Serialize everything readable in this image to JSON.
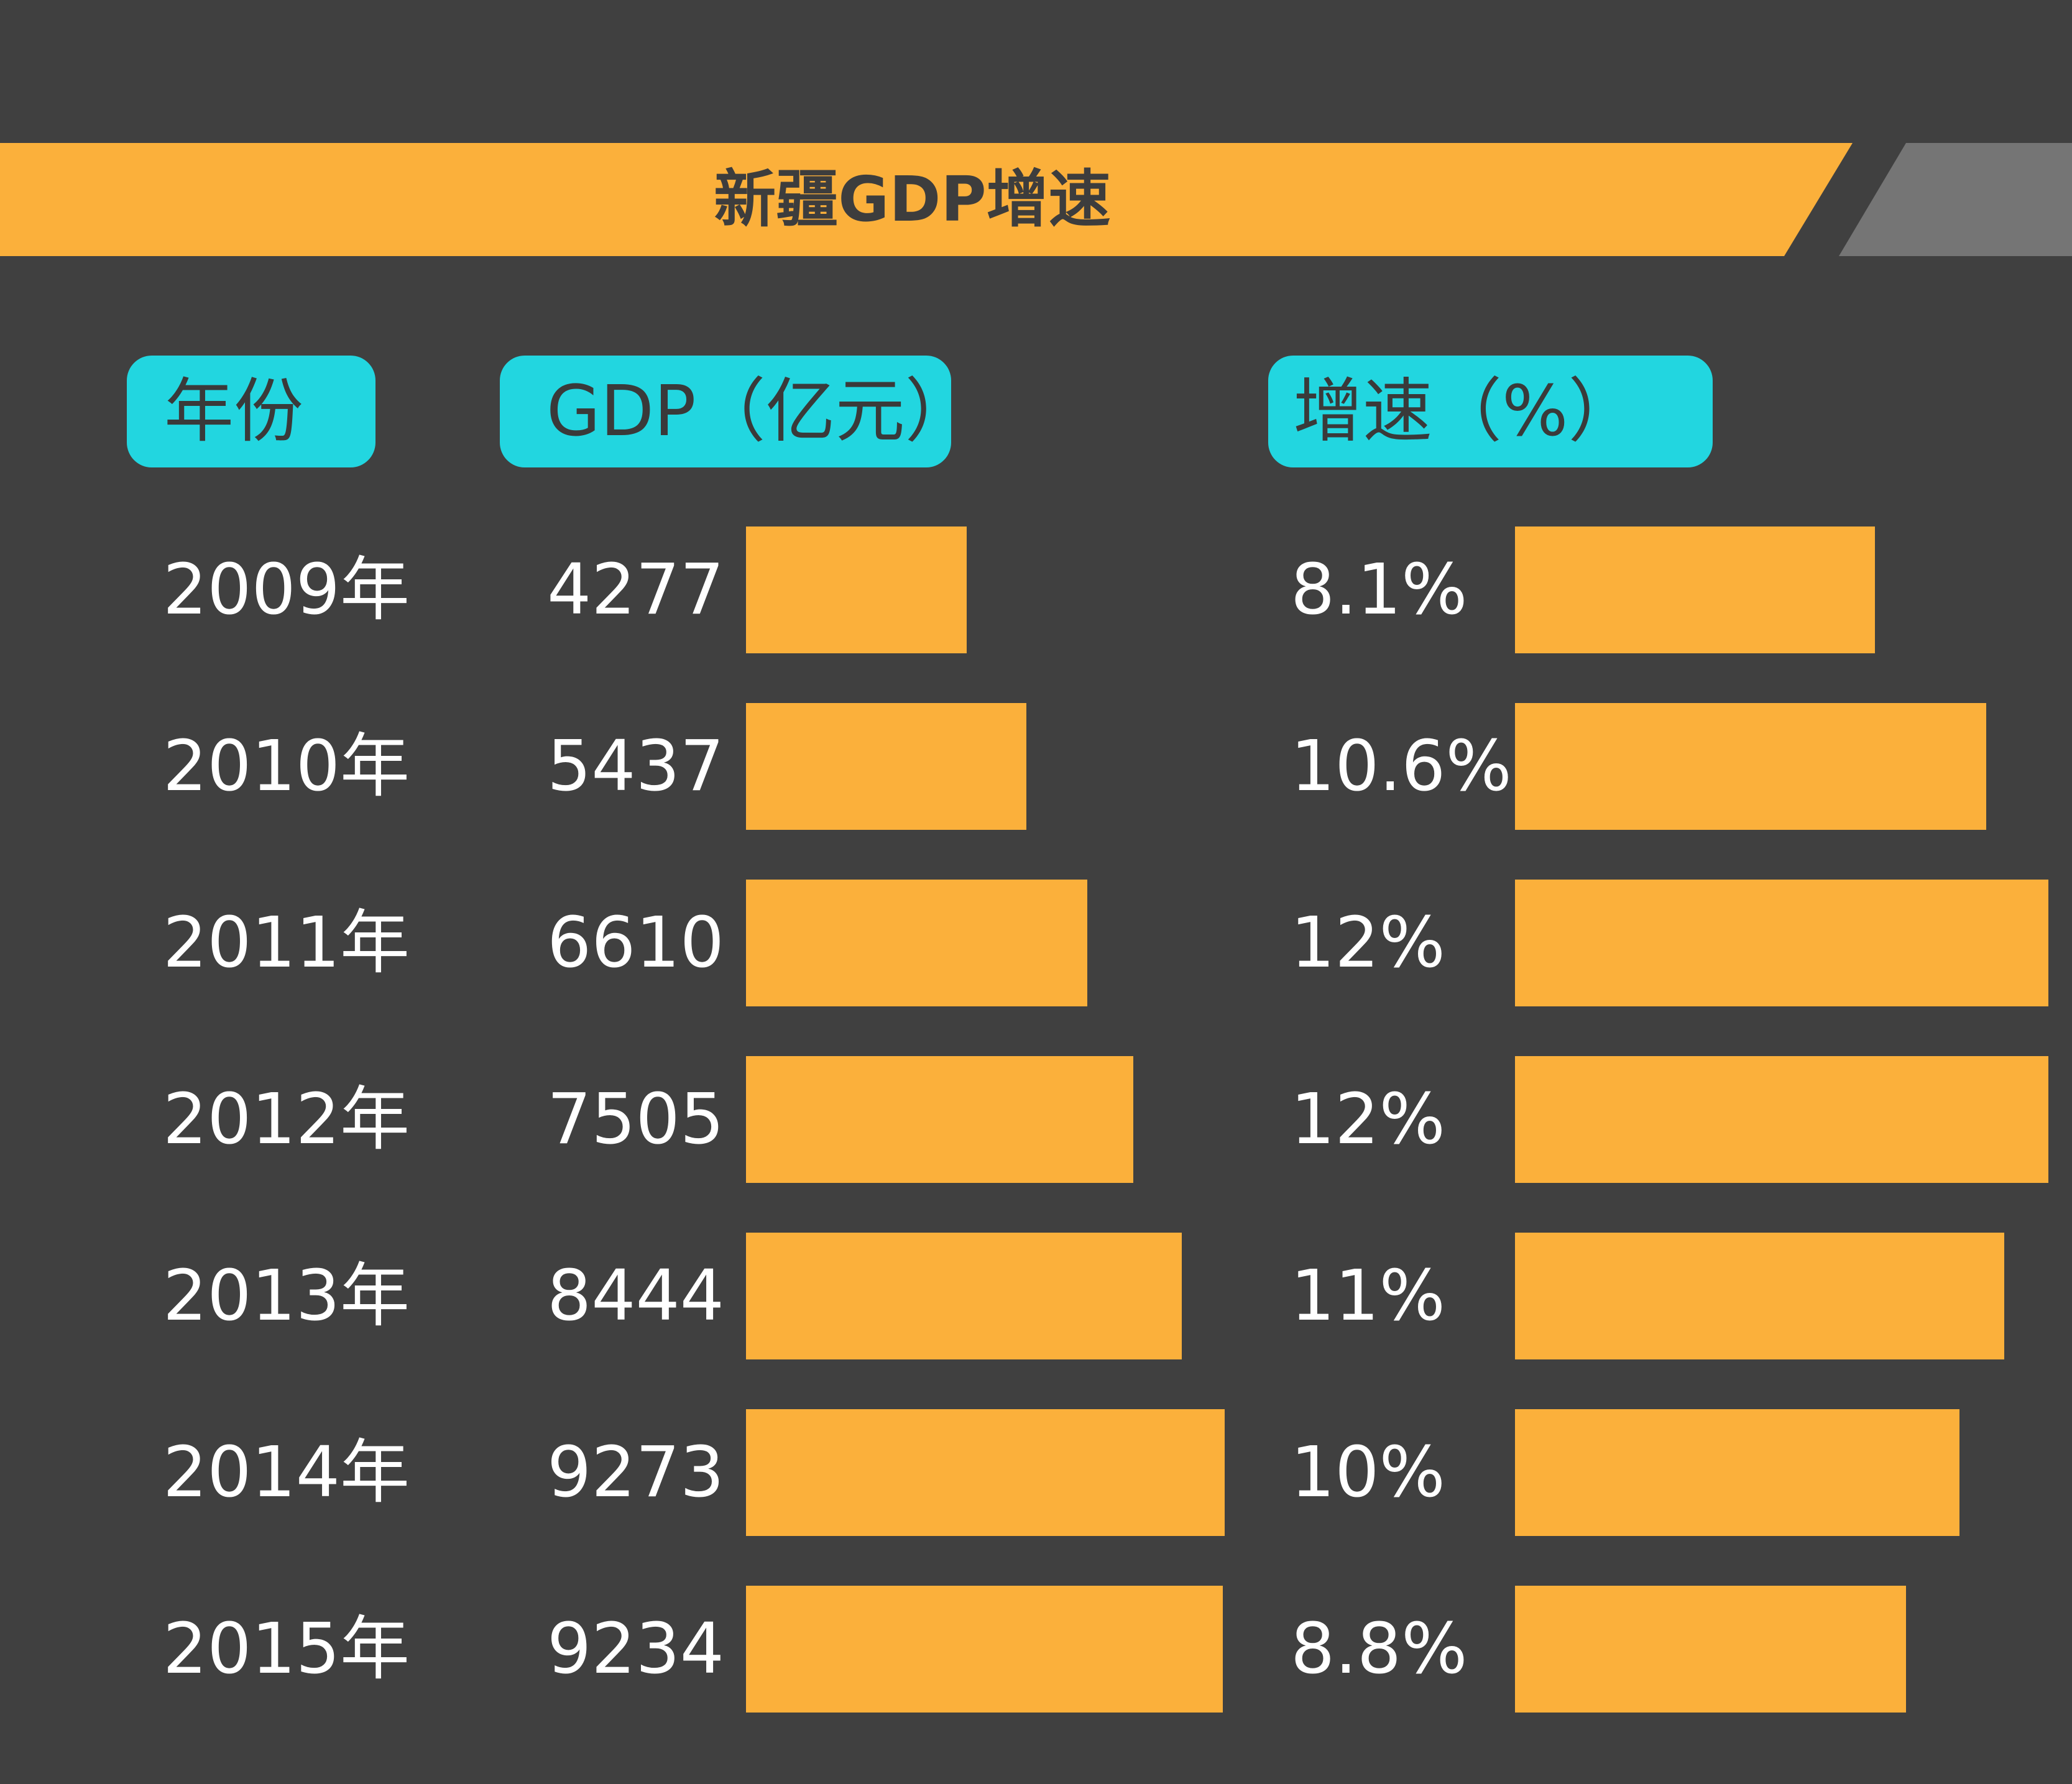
{
  "title": "新疆GDP增速",
  "headers": {
    "year": "年份",
    "gdp": "GDP（亿元）",
    "growth": "增速（%）"
  },
  "colors": {
    "background": "#404040",
    "accent": "#FBB03B",
    "header_pill": "#22D6E0",
    "banner_tail": "#757575"
  },
  "chart_data": {
    "type": "bar",
    "title": "新疆GDP增速",
    "categories": [
      "2009年",
      "2010年",
      "2011年",
      "2012年",
      "2013年",
      "2014年",
      "2015年"
    ],
    "series": [
      {
        "name": "GDP（亿元）",
        "values": [
          4277,
          5437,
          6610,
          7505,
          8444,
          9273,
          9234
        ],
        "labels": [
          "4277",
          "5437",
          "6610",
          "7505",
          "8444",
          "9273",
          "9234"
        ]
      },
      {
        "name": "增速（%）",
        "values": [
          8.1,
          10.6,
          12,
          12,
          11,
          10,
          8.8
        ],
        "labels": [
          "8.1%",
          "10.6%",
          "12%",
          "12%",
          "11%",
          "10%",
          "8.8%"
        ]
      }
    ],
    "orientation": "horizontal",
    "xlabel": "",
    "ylabel": "年份",
    "grid": false
  }
}
